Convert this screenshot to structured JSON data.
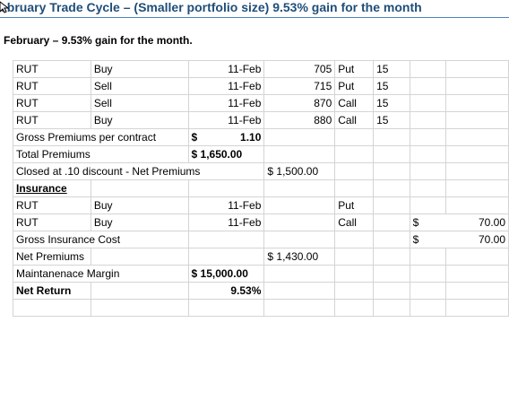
{
  "header": {
    "title": "ebruary Trade Cycle – (Smaller portfolio size) 9.53% gain for the month",
    "subtitle": "February – 9.53% gain for the month."
  },
  "trades": [
    {
      "symbol": "RUT",
      "action": "Buy",
      "date": "11-Feb",
      "strike": "705",
      "type": "Put",
      "qty": "15"
    },
    {
      "symbol": "RUT",
      "action": "Sell",
      "date": "11-Feb",
      "strike": "715",
      "type": "Put",
      "qty": "15"
    },
    {
      "symbol": "RUT",
      "action": "Sell",
      "date": "11-Feb",
      "strike": "870",
      "type": "Call",
      "qty": "15"
    },
    {
      "symbol": "RUT",
      "action": "Buy",
      "date": "11-Feb",
      "strike": "880",
      "type": "Call",
      "qty": "15"
    }
  ],
  "gross_premiums": {
    "label": "Gross Premiums per contract",
    "currency": "$",
    "value": "1.10"
  },
  "total_premiums": {
    "label": "Total Premiums",
    "value": "$ 1,650.00"
  },
  "closed": {
    "label": "Closed at .10 discount - Net Premiums",
    "value": "$ 1,500.00"
  },
  "insurance": {
    "heading": "Insurance",
    "rows": [
      {
        "symbol": "RUT",
        "action": "Buy",
        "date": "11-Feb",
        "type": "Put",
        "currency": "",
        "value": ""
      },
      {
        "symbol": "RUT",
        "action": "Buy",
        "date": "11-Feb",
        "type": "Call",
        "currency": "$",
        "value": "70.00"
      }
    ]
  },
  "gross_insurance": {
    "label": "Gross Insurance Cost",
    "currency": "$",
    "value": "70.00"
  },
  "net_premiums": {
    "label": "Net Premiums",
    "value": "$ 1,430.00"
  },
  "margin": {
    "label": "Maintanenace Margin",
    "value": "$ 15,000.00"
  },
  "net_return": {
    "label": "Net Return",
    "value": "9.53%"
  }
}
